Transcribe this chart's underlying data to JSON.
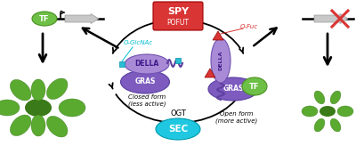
{
  "bg_color": "#ffffff",
  "spy_box_color": "#d93535",
  "spy_text": "SPY",
  "pofut_text": "POFUT",
  "sec_box_color": "#1fc8e0",
  "sec_text": "SEC",
  "ogt_text": "OGT",
  "della_color": "#a98ad6",
  "gras_color": "#7d5bbf",
  "tf_color": "#6dbf45",
  "tf_edge_color": "#4a9020",
  "cyan_color": "#00bcd4",
  "red_color": "#d93535",
  "closed_label": "Closed form\n(less active)",
  "open_label": "Open form\n(more active)",
  "o_glcnac_text": "O-GlcNAc",
  "o_fuc_text": "O-Fuc",
  "plant_green": "#5aaa30",
  "plant_dark": "#3a7a18",
  "gray_arrow": "#c8c8c8",
  "gray_edge": "#999999"
}
